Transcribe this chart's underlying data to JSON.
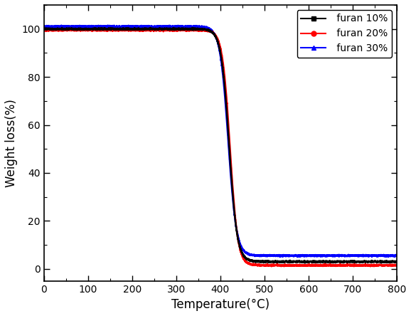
{
  "title": "",
  "xlabel": "Temperature(°C)",
  "ylabel": "Weight loss(%)",
  "xlim": [
    0,
    800
  ],
  "ylim": [
    -5,
    110
  ],
  "xticks": [
    0,
    100,
    200,
    300,
    400,
    500,
    600,
    700,
    800
  ],
  "yticks": [
    0,
    20,
    40,
    60,
    80,
    100
  ],
  "series": [
    {
      "label": " furan 10%",
      "color": "#000000",
      "marker": "s",
      "markersize": 5,
      "linewidth": 1.8,
      "midpoint": 420,
      "final_value": 3.0,
      "plateau_value": 100.0,
      "steepness": 0.11
    },
    {
      "label": " furan 20%",
      "color": "#ff0000",
      "marker": "o",
      "markersize": 5,
      "linewidth": 1.8,
      "midpoint": 422,
      "final_value": 1.5,
      "plateau_value": 99.5,
      "steepness": 0.115
    },
    {
      "label": " furan 30%",
      "color": "#0000ff",
      "marker": "^",
      "markersize": 5,
      "linewidth": 1.8,
      "midpoint": 418,
      "final_value": 5.5,
      "plateau_value": 101.0,
      "steepness": 0.108
    }
  ],
  "legend_loc": "upper right",
  "legend_fontsize": 10,
  "axis_fontsize": 12,
  "tick_fontsize": 10,
  "figure_facecolor": "#ffffff",
  "axes_facecolor": "#ffffff"
}
